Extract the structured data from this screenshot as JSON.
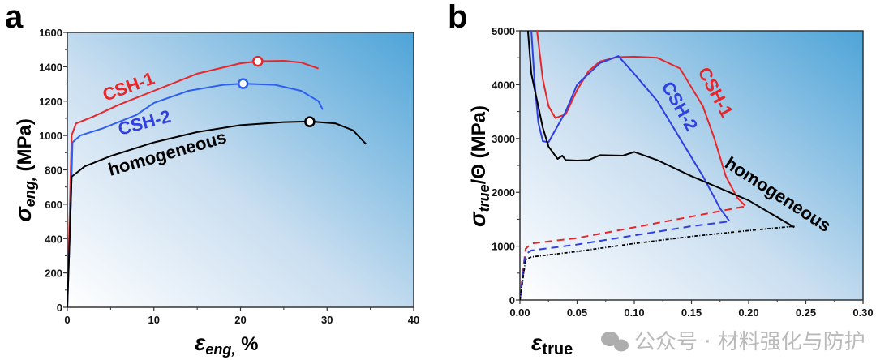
{
  "chart_data": [
    {
      "panel": "a",
      "type": "line",
      "xlabel": "ε_eng, %",
      "ylabel": "σ_eng, (MPa)",
      "xlim": [
        0,
        40
      ],
      "ylim": [
        0,
        1600
      ],
      "xticks": [
        0,
        10,
        20,
        30,
        40
      ],
      "yticks": [
        0,
        200,
        400,
        600,
        800,
        1000,
        1200,
        1400,
        1600
      ],
      "grid": false,
      "series": [
        {
          "name": "CSH-1",
          "color": "#e8262a",
          "marker": [
            22,
            1432
          ],
          "points": [
            [
              0,
              0
            ],
            [
              0.3,
              600
            ],
            [
              0.5,
              1000
            ],
            [
              1,
              1070
            ],
            [
              3,
              1110
            ],
            [
              6,
              1180
            ],
            [
              10,
              1260
            ],
            [
              15,
              1360
            ],
            [
              20,
              1420
            ],
            [
              22,
              1432
            ],
            [
              25,
              1435
            ],
            [
              27,
              1425
            ],
            [
              29,
              1390
            ]
          ]
        },
        {
          "name": "CSH-2",
          "color": "#2f5ff0",
          "marker": [
            20.3,
            1302
          ],
          "points": [
            [
              0,
              0
            ],
            [
              0.4,
              600
            ],
            [
              0.6,
              960
            ],
            [
              1.5,
              1000
            ],
            [
              4,
              1040
            ],
            [
              8,
              1120
            ],
            [
              10,
              1190
            ],
            [
              14,
              1260
            ],
            [
              18,
              1295
            ],
            [
              20.3,
              1302
            ],
            [
              24,
              1295
            ],
            [
              27,
              1260
            ],
            [
              29,
              1200
            ],
            [
              29.5,
              1150
            ]
          ]
        },
        {
          "name": "homogeneous",
          "color": "#000000",
          "marker": [
            28,
            1080
          ],
          "points": [
            [
              0,
              0
            ],
            [
              0.4,
              600
            ],
            [
              0.5,
              760
            ],
            [
              2,
              820
            ],
            [
              5,
              880
            ],
            [
              10,
              960
            ],
            [
              15,
              1020
            ],
            [
              20,
              1060
            ],
            [
              25,
              1078
            ],
            [
              28,
              1082
            ],
            [
              31,
              1070
            ],
            [
              33,
              1030
            ],
            [
              34.5,
              950
            ]
          ]
        }
      ]
    },
    {
      "panel": "b",
      "type": "line",
      "xlabel": "ε_true",
      "ylabel": "σ_true/Θ (MPa)",
      "xlim": [
        0,
        0.3
      ],
      "ylim": [
        0,
        5000
      ],
      "xticks": [
        "0.00",
        "0.05",
        "0.10",
        "0.15",
        "0.20",
        "0.25",
        "0.30"
      ],
      "yticks": [
        0,
        1000,
        2000,
        3000,
        4000,
        5000
      ],
      "grid": false,
      "series": [
        {
          "name": "CSH-1",
          "quantity": "Θ",
          "style": "solid",
          "color": "#e8262a",
          "points": [
            [
              0.015,
              5000
            ],
            [
              0.02,
              4100
            ],
            [
              0.025,
              3600
            ],
            [
              0.031,
              3380
            ],
            [
              0.04,
              3450
            ],
            [
              0.05,
              3900
            ],
            [
              0.06,
              4250
            ],
            [
              0.07,
              4430
            ],
            [
              0.085,
              4510
            ],
            [
              0.1,
              4520
            ],
            [
              0.12,
              4500
            ],
            [
              0.14,
              4300
            ],
            [
              0.16,
              3600
            ],
            [
              0.17,
              3000
            ],
            [
              0.18,
              2300
            ],
            [
              0.19,
              1900
            ],
            [
              0.197,
              1750
            ]
          ]
        },
        {
          "name": "CSH-1",
          "quantity": "σ_true",
          "style": "dashed",
          "color": "#e8262a",
          "points": [
            [
              0,
              0
            ],
            [
              0.003,
              600
            ],
            [
              0.005,
              950
            ],
            [
              0.01,
              1050
            ],
            [
              0.05,
              1150
            ],
            [
              0.1,
              1350
            ],
            [
              0.15,
              1550
            ],
            [
              0.197,
              1740
            ]
          ]
        },
        {
          "name": "CSH-2",
          "quantity": "Θ",
          "style": "solid",
          "color": "#2f3fe0",
          "points": [
            [
              0.01,
              5000
            ],
            [
              0.013,
              4000
            ],
            [
              0.016,
              3300
            ],
            [
              0.02,
              2950
            ],
            [
              0.025,
              2930
            ],
            [
              0.04,
              3500
            ],
            [
              0.05,
              4000
            ],
            [
              0.07,
              4400
            ],
            [
              0.086,
              4530
            ],
            [
              0.1,
              4200
            ],
            [
              0.12,
              3700
            ],
            [
              0.14,
              3000
            ],
            [
              0.16,
              2300
            ],
            [
              0.175,
              1700
            ],
            [
              0.183,
              1470
            ]
          ]
        },
        {
          "name": "CSH-2",
          "quantity": "σ_true",
          "style": "dashed",
          "color": "#2f3fe0",
          "points": [
            [
              0,
              0
            ],
            [
              0.005,
              850
            ],
            [
              0.01,
              920
            ],
            [
              0.05,
              1030
            ],
            [
              0.1,
              1200
            ],
            [
              0.15,
              1370
            ],
            [
              0.183,
              1460
            ]
          ]
        },
        {
          "name": "homogeneous",
          "quantity": "Θ",
          "style": "solid",
          "color": "#000000",
          "points": [
            [
              0.007,
              5000
            ],
            [
              0.01,
              4200
            ],
            [
              0.02,
              3200
            ],
            [
              0.025,
              2850
            ],
            [
              0.033,
              2620
            ],
            [
              0.037,
              2680
            ],
            [
              0.04,
              2600
            ],
            [
              0.05,
              2590
            ],
            [
              0.06,
              2600
            ],
            [
              0.07,
              2690
            ],
            [
              0.09,
              2680
            ],
            [
              0.1,
              2750
            ],
            [
              0.12,
              2600
            ],
            [
              0.15,
              2300
            ],
            [
              0.2,
              1850
            ],
            [
              0.24,
              1350
            ]
          ]
        },
        {
          "name": "homogeneous",
          "quantity": "σ_true",
          "style": "dotted",
          "color": "#000000",
          "points": [
            [
              0,
              0
            ],
            [
              0.005,
              750
            ],
            [
              0.01,
              800
            ],
            [
              0.05,
              900
            ],
            [
              0.1,
              1050
            ],
            [
              0.15,
              1180
            ],
            [
              0.2,
              1290
            ],
            [
              0.24,
              1370
            ]
          ]
        }
      ]
    }
  ],
  "labels": {
    "a": "a",
    "b": "b",
    "csh1": "CSH-1",
    "csh2": "CSH-2",
    "homog": "homogeneous"
  },
  "watermark": "公众号 · 材料强化与防护"
}
